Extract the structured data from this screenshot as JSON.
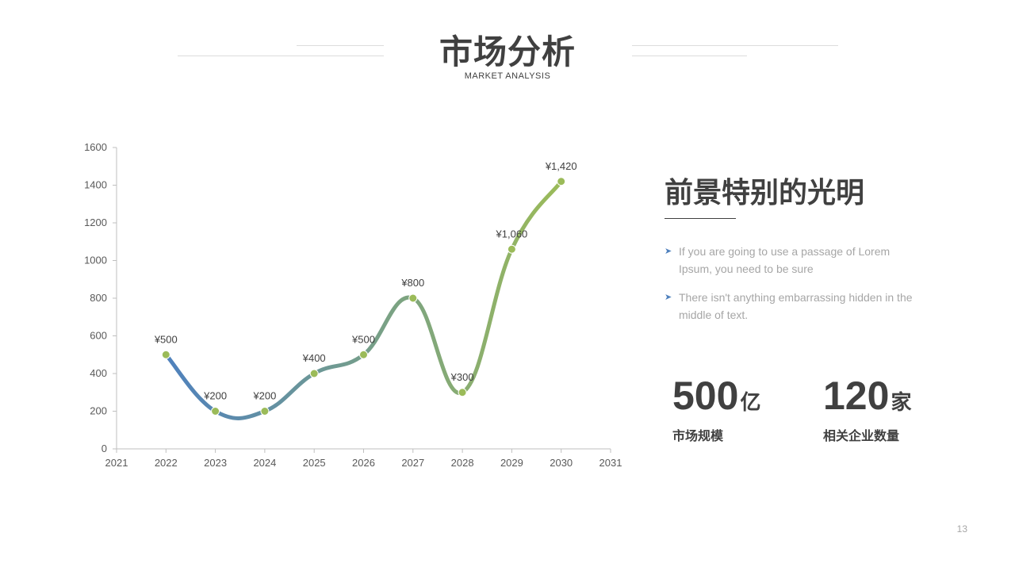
{
  "slide": {
    "title": "市场分析",
    "subtitle": "MARKET ANALYSIS",
    "page_number": "13"
  },
  "chart_data": {
    "type": "line",
    "smooth": true,
    "x": [
      2022,
      2023,
      2024,
      2025,
      2026,
      2027,
      2028,
      2029,
      2030
    ],
    "series": [
      {
        "values": [
          500,
          200,
          200,
          400,
          500,
          800,
          300,
          1060,
          1420
        ]
      }
    ],
    "data_labels": [
      "¥500",
      "¥200",
      "¥200",
      "¥400",
      "¥500",
      "¥800",
      "¥300",
      "¥1,060",
      "¥1,420"
    ],
    "xlim": [
      2021,
      2031
    ],
    "ylim": [
      0,
      1600
    ],
    "x_ticks": [
      "2021",
      "2022",
      "2023",
      "2024",
      "2025",
      "2026",
      "2027",
      "2028",
      "2029",
      "2030",
      "2031"
    ],
    "y_ticks": [
      "0",
      "200",
      "400",
      "600",
      "800",
      "1000",
      "1200",
      "1400",
      "1600"
    ],
    "grid": false,
    "colors": {
      "line_start": "#4f81bd",
      "line_end": "#9bbb59",
      "marker": "#9bbb59",
      "axis": "#bfbfbf"
    }
  },
  "panel": {
    "heading": "前景特别的光明",
    "bullets": [
      "If you are going to use a passage of Lorem Ipsum, you need to be sure",
      "There isn't anything embarrassing hidden in the middle of text."
    ],
    "bullet_icon": "arrow-right-icon"
  },
  "stats": [
    {
      "value": "500",
      "unit": "亿",
      "label": "市场规模"
    },
    {
      "value": "120",
      "unit": "家",
      "label": "相关企业数量"
    }
  ]
}
